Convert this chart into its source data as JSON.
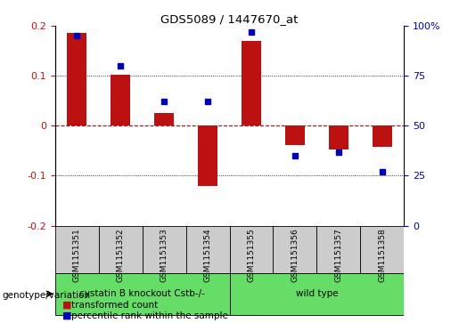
{
  "title": "GDS5089 / 1447670_at",
  "samples": [
    "GSM1151351",
    "GSM1151352",
    "GSM1151353",
    "GSM1151354",
    "GSM1151355",
    "GSM1151356",
    "GSM1151357",
    "GSM1151358"
  ],
  "transformed_count": [
    0.185,
    0.102,
    0.025,
    -0.12,
    0.17,
    -0.038,
    -0.048,
    -0.043
  ],
  "percentile_rank": [
    95,
    80,
    62,
    62,
    97,
    35,
    37,
    27
  ],
  "ylim_left": [
    -0.2,
    0.2
  ],
  "ylim_right": [
    0,
    100
  ],
  "yticks_left": [
    -0.2,
    -0.1,
    0.0,
    0.1,
    0.2
  ],
  "yticks_right": [
    0,
    25,
    50,
    75,
    100
  ],
  "bar_color": "#bb1111",
  "dot_color": "#0000bb",
  "zero_line_color": "#cc0000",
  "grid_color": "#000000",
  "group1_label": "cystatin B knockout Cstb-/-",
  "group2_label": "wild type",
  "group1_samples": [
    0,
    1,
    2,
    3
  ],
  "group2_samples": [
    4,
    5,
    6,
    7
  ],
  "group_bg_color": "#66dd66",
  "sample_bg_color": "#cccccc",
  "legend_red_label": "transformed count",
  "legend_blue_label": "percentile rank within the sample",
  "genotype_label": "genotype/variation"
}
